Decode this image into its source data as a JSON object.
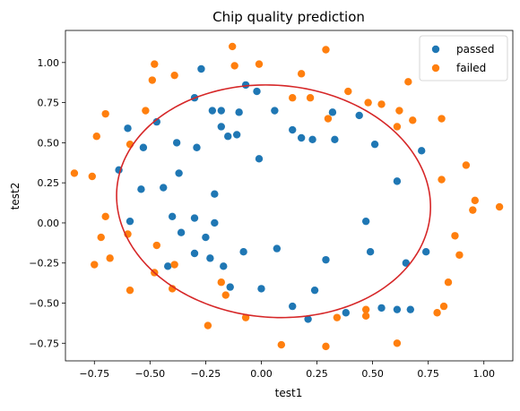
{
  "chart_data": {
    "type": "scatter",
    "title": "Chip quality prediction",
    "xlabel": "test1",
    "ylabel": "test2",
    "xlim": [
      -0.88,
      1.13
    ],
    "ylim": [
      -0.86,
      1.2
    ],
    "x_ticks": [
      -0.75,
      -0.5,
      -0.25,
      0.0,
      0.25,
      0.5,
      0.75,
      1.0
    ],
    "x_tick_labels": [
      "−0.75",
      "−0.50",
      "−0.25",
      "0.00",
      "0.25",
      "0.50",
      "0.75",
      "1.00"
    ],
    "y_ticks": [
      -0.75,
      -0.5,
      -0.25,
      0.0,
      0.25,
      0.5,
      0.75,
      1.0
    ],
    "y_tick_labels": [
      "−0.75",
      "−0.50",
      "−0.25",
      "0.00",
      "0.25",
      "0.50",
      "0.75",
      "1.00"
    ],
    "grid": false,
    "legend_position": "top-right",
    "series": [
      {
        "name": "passed",
        "color": "#1f77b4",
        "points": [
          [
            -0.27,
            0.96
          ],
          [
            -0.3,
            0.78
          ],
          [
            -0.22,
            0.7
          ],
          [
            -0.18,
            0.7
          ],
          [
            -0.1,
            0.69
          ],
          [
            -0.07,
            0.86
          ],
          [
            -0.02,
            0.82
          ],
          [
            -0.18,
            0.6
          ],
          [
            -0.11,
            0.55
          ],
          [
            -0.15,
            0.54
          ],
          [
            0.06,
            0.7
          ],
          [
            -0.6,
            0.59
          ],
          [
            -0.47,
            0.63
          ],
          [
            -0.53,
            0.47
          ],
          [
            -0.38,
            0.5
          ],
          [
            -0.29,
            0.47
          ],
          [
            -0.37,
            0.31
          ],
          [
            -0.64,
            0.33
          ],
          [
            -0.54,
            0.21
          ],
          [
            -0.44,
            0.22
          ],
          [
            -0.21,
            0.18
          ],
          [
            -0.01,
            0.4
          ],
          [
            -0.4,
            0.04
          ],
          [
            -0.3,
            0.03
          ],
          [
            -0.21,
            0.0
          ],
          [
            -0.59,
            0.01
          ],
          [
            -0.36,
            -0.06
          ],
          [
            -0.25,
            -0.09
          ],
          [
            -0.3,
            -0.19
          ],
          [
            -0.23,
            -0.22
          ],
          [
            -0.42,
            -0.27
          ],
          [
            -0.17,
            -0.27
          ],
          [
            -0.14,
            -0.4
          ],
          [
            -0.08,
            -0.18
          ],
          [
            0.0,
            -0.41
          ],
          [
            0.07,
            -0.16
          ],
          [
            0.14,
            -0.52
          ],
          [
            0.21,
            -0.6
          ],
          [
            0.24,
            -0.42
          ],
          [
            0.29,
            -0.23
          ],
          [
            0.14,
            0.58
          ],
          [
            0.18,
            0.53
          ],
          [
            0.23,
            0.52
          ],
          [
            0.33,
            0.52
          ],
          [
            0.32,
            0.69
          ],
          [
            0.44,
            0.67
          ],
          [
            0.51,
            0.49
          ],
          [
            0.61,
            0.26
          ],
          [
            0.72,
            0.45
          ],
          [
            0.47,
            0.01
          ],
          [
            0.49,
            -0.18
          ],
          [
            0.65,
            -0.25
          ],
          [
            0.74,
            -0.18
          ],
          [
            0.54,
            -0.53
          ],
          [
            0.61,
            -0.54
          ],
          [
            0.67,
            -0.54
          ],
          [
            0.38,
            -0.56
          ]
        ]
      },
      {
        "name": "failed",
        "color": "#ff7f0e",
        "points": [
          [
            -0.84,
            0.31
          ],
          [
            -0.76,
            0.29
          ],
          [
            -0.74,
            0.54
          ],
          [
            -0.7,
            0.68
          ],
          [
            -0.72,
            -0.09
          ],
          [
            -0.75,
            -0.26
          ],
          [
            -0.68,
            -0.22
          ],
          [
            -0.7,
            0.04
          ],
          [
            -0.59,
            0.49
          ],
          [
            -0.6,
            -0.07
          ],
          [
            -0.59,
            -0.42
          ],
          [
            -0.52,
            0.7
          ],
          [
            -0.48,
            0.99
          ],
          [
            -0.49,
            0.89
          ],
          [
            -0.39,
            0.92
          ],
          [
            -0.47,
            -0.14
          ],
          [
            -0.48,
            -0.31
          ],
          [
            -0.39,
            -0.26
          ],
          [
            -0.4,
            -0.41
          ],
          [
            -0.18,
            -0.37
          ],
          [
            -0.16,
            -0.45
          ],
          [
            -0.24,
            -0.64
          ],
          [
            -0.13,
            1.1
          ],
          [
            -0.12,
            0.98
          ],
          [
            -0.01,
            0.99
          ],
          [
            0.18,
            0.93
          ],
          [
            0.14,
            0.78
          ],
          [
            0.22,
            0.78
          ],
          [
            0.29,
            1.08
          ],
          [
            0.3,
            0.65
          ],
          [
            0.39,
            0.82
          ],
          [
            0.48,
            0.75
          ],
          [
            0.54,
            0.74
          ],
          [
            0.61,
            0.6
          ],
          [
            0.62,
            0.7
          ],
          [
            0.68,
            0.64
          ],
          [
            0.66,
            0.88
          ],
          [
            0.81,
            0.65
          ],
          [
            0.81,
            0.27
          ],
          [
            0.92,
            0.36
          ],
          [
            0.96,
            0.14
          ],
          [
            0.95,
            0.08
          ],
          [
            1.07,
            0.1
          ],
          [
            0.87,
            -0.08
          ],
          [
            0.89,
            -0.2
          ],
          [
            0.84,
            -0.37
          ],
          [
            0.82,
            -0.52
          ],
          [
            0.79,
            -0.56
          ],
          [
            0.61,
            -0.75
          ],
          [
            0.47,
            -0.54
          ],
          [
            0.47,
            -0.58
          ],
          [
            0.34,
            -0.59
          ],
          [
            0.29,
            -0.77
          ],
          [
            0.09,
            -0.76
          ],
          [
            -0.07,
            -0.59
          ]
        ]
      }
    ],
    "decision_boundary": {
      "color": "#d62728",
      "center": [
        0.055,
        0.135
      ],
      "semi_axes": [
        0.695,
        0.735
      ],
      "rotation_deg": 30
    }
  }
}
